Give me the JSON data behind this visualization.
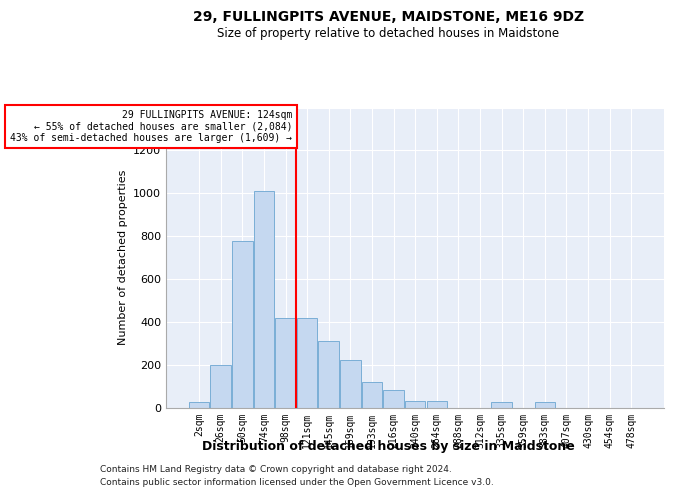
{
  "title": "29, FULLINGPITS AVENUE, MAIDSTONE, ME16 9DZ",
  "subtitle": "Size of property relative to detached houses in Maidstone",
  "xlabel": "Distribution of detached houses by size in Maidstone",
  "ylabel": "Number of detached properties",
  "bar_color": "#c5d8f0",
  "bar_edge_color": "#7aaed6",
  "background_color": "#e8eef8",
  "categories": [
    "2sqm",
    "26sqm",
    "50sqm",
    "74sqm",
    "98sqm",
    "121sqm",
    "145sqm",
    "169sqm",
    "193sqm",
    "216sqm",
    "240sqm",
    "264sqm",
    "288sqm",
    "312sqm",
    "335sqm",
    "359sqm",
    "383sqm",
    "407sqm",
    "430sqm",
    "454sqm",
    "478sqm"
  ],
  "values": [
    25,
    200,
    775,
    1010,
    420,
    420,
    310,
    220,
    120,
    80,
    30,
    30,
    0,
    0,
    25,
    0,
    25,
    0,
    0,
    0,
    0
  ],
  "redline_index": 4.5,
  "marker_label_line1": "29 FULLINGPITS AVENUE: 124sqm",
  "marker_label_line2": "← 55% of detached houses are smaller (2,084)",
  "marker_label_line3": "43% of semi-detached houses are larger (1,609) →",
  "ylim": [
    0,
    1400
  ],
  "yticks": [
    0,
    200,
    400,
    600,
    800,
    1000,
    1200,
    1400
  ],
  "footnote1": "Contains HM Land Registry data © Crown copyright and database right 2024.",
  "footnote2": "Contains public sector information licensed under the Open Government Licence v3.0."
}
